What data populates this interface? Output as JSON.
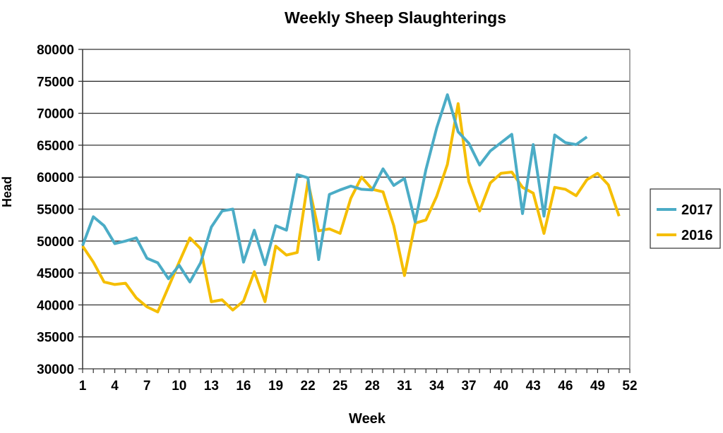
{
  "chart_data": {
    "type": "line",
    "title": "Weekly Sheep Slaughterings",
    "xlabel": "Week",
    "ylabel": "Head",
    "ylim": [
      30000,
      80000
    ],
    "yticks": [
      "30000",
      "35000",
      "40000",
      "45000",
      "50000",
      "55000",
      "60000",
      "65000",
      "70000",
      "75000",
      "80000"
    ],
    "xlim": [
      1,
      52
    ],
    "xticks": [
      "1",
      "4",
      "7",
      "10",
      "13",
      "16",
      "19",
      "22",
      "25",
      "28",
      "31",
      "34",
      "37",
      "40",
      "43",
      "46",
      "49",
      "52"
    ],
    "grid": "horizontal",
    "legend": "right",
    "series": [
      {
        "name": "2017",
        "color": "#4BACC6",
        "x": [
          1,
          2,
          3,
          4,
          5,
          6,
          7,
          8,
          9,
          10,
          11,
          12,
          13,
          14,
          15,
          16,
          17,
          18,
          19,
          20,
          21,
          22,
          23,
          24,
          25,
          26,
          27,
          28,
          29,
          30,
          31,
          32,
          33,
          34,
          35,
          36,
          37,
          38,
          39,
          40,
          41,
          42,
          43,
          44,
          45,
          46,
          47,
          48
        ],
        "values": [
          49300,
          53800,
          52400,
          49600,
          50000,
          50500,
          47300,
          46600,
          44100,
          46200,
          43600,
          46600,
          52200,
          54700,
          55000,
          46700,
          51700,
          46300,
          52400,
          51700,
          60400,
          59900,
          47100,
          57300,
          58000,
          58600,
          58100,
          58000,
          61300,
          58700,
          59800,
          53000,
          61200,
          67700,
          72900,
          67100,
          65300,
          61900,
          64100,
          65400,
          66700,
          54300,
          65100,
          53900,
          66600,
          65400,
          65100,
          66300
        ]
      },
      {
        "name": "2016",
        "color": "#F5BE00",
        "x": [
          1,
          2,
          3,
          4,
          5,
          6,
          7,
          8,
          9,
          10,
          11,
          12,
          13,
          14,
          15,
          16,
          17,
          18,
          19,
          20,
          21,
          22,
          23,
          24,
          25,
          26,
          27,
          28,
          29,
          30,
          31,
          32,
          33,
          34,
          35,
          36,
          37,
          38,
          39,
          40,
          41,
          42,
          43,
          44,
          45,
          46,
          47,
          48,
          49,
          50,
          51
        ],
        "values": [
          49200,
          46700,
          43600,
          43200,
          43400,
          41100,
          39700,
          38900,
          42800,
          46700,
          50500,
          48800,
          40500,
          40800,
          39200,
          40600,
          45200,
          40500,
          49200,
          47800,
          48200,
          59300,
          51600,
          51900,
          51200,
          56700,
          60000,
          58100,
          57700,
          52400,
          44600,
          52800,
          53300,
          57000,
          62000,
          71500,
          59300,
          54700,
          59100,
          60600,
          60800,
          58400,
          57500,
          51200,
          58400,
          58100,
          57100,
          59600,
          60600,
          58800,
          53900
        ]
      }
    ]
  }
}
